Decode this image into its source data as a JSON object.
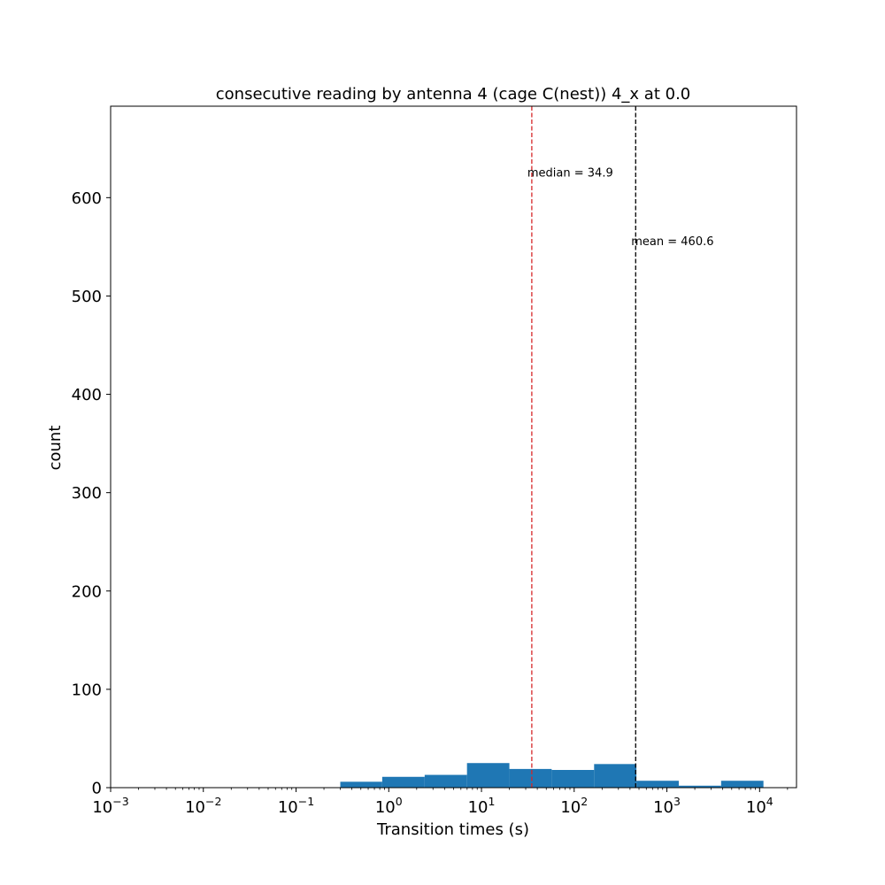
{
  "chart_data": {
    "type": "bar",
    "title": "consecutive reading by antenna 4 (cage C(nest)) 4_x at 0.0",
    "xlabel": "Transition times (s)",
    "ylabel": "count",
    "xscale": "log",
    "xlim": [
      0.001,
      25000
    ],
    "ylim": [
      0,
      693
    ],
    "x_ticks": [
      {
        "base": "10",
        "exp": "−3",
        "value": 0.001
      },
      {
        "base": "10",
        "exp": "−2",
        "value": 0.01
      },
      {
        "base": "10",
        "exp": "−1",
        "value": 0.1
      },
      {
        "base": "10",
        "exp": "0",
        "value": 1
      },
      {
        "base": "10",
        "exp": "1",
        "value": 10
      },
      {
        "base": "10",
        "exp": "2",
        "value": 100
      },
      {
        "base": "10",
        "exp": "3",
        "value": 1000
      },
      {
        "base": "10",
        "exp": "4",
        "value": 10000
      }
    ],
    "y_ticks": [
      {
        "label": "0",
        "value": 0
      },
      {
        "label": "100",
        "value": 100
      },
      {
        "label": "200",
        "value": 200
      },
      {
        "label": "300",
        "value": 300
      },
      {
        "label": "400",
        "value": 400
      },
      {
        "label": "500",
        "value": 500
      },
      {
        "label": "600",
        "value": 600
      }
    ],
    "bins": [
      {
        "x0": 0.3,
        "x1": 0.85,
        "count": 6
      },
      {
        "x0": 0.85,
        "x1": 2.44,
        "count": 11
      },
      {
        "x0": 2.44,
        "x1": 6.98,
        "count": 13
      },
      {
        "x0": 6.98,
        "x1": 20.0,
        "count": 25
      },
      {
        "x0": 20.0,
        "x1": 57.2,
        "count": 19
      },
      {
        "x0": 57.2,
        "x1": 164,
        "count": 18
      },
      {
        "x0": 164,
        "x1": 469,
        "count": 24
      },
      {
        "x0": 469,
        "x1": 1343,
        "count": 7
      },
      {
        "x0": 1343,
        "x1": 3845,
        "count": 2
      },
      {
        "x0": 3845,
        "x1": 11000,
        "count": 7
      }
    ],
    "bar_color": "#1f77b4",
    "grid": false,
    "reference_lines": [
      {
        "x": 34.9,
        "label": "median = 34.9",
        "color": "#d62728",
        "style": "dashed",
        "label_y": 626
      },
      {
        "x": 460.6,
        "label": "mean = 460.6",
        "color": "#000000",
        "style": "dashed",
        "label_y": 556
      }
    ]
  }
}
